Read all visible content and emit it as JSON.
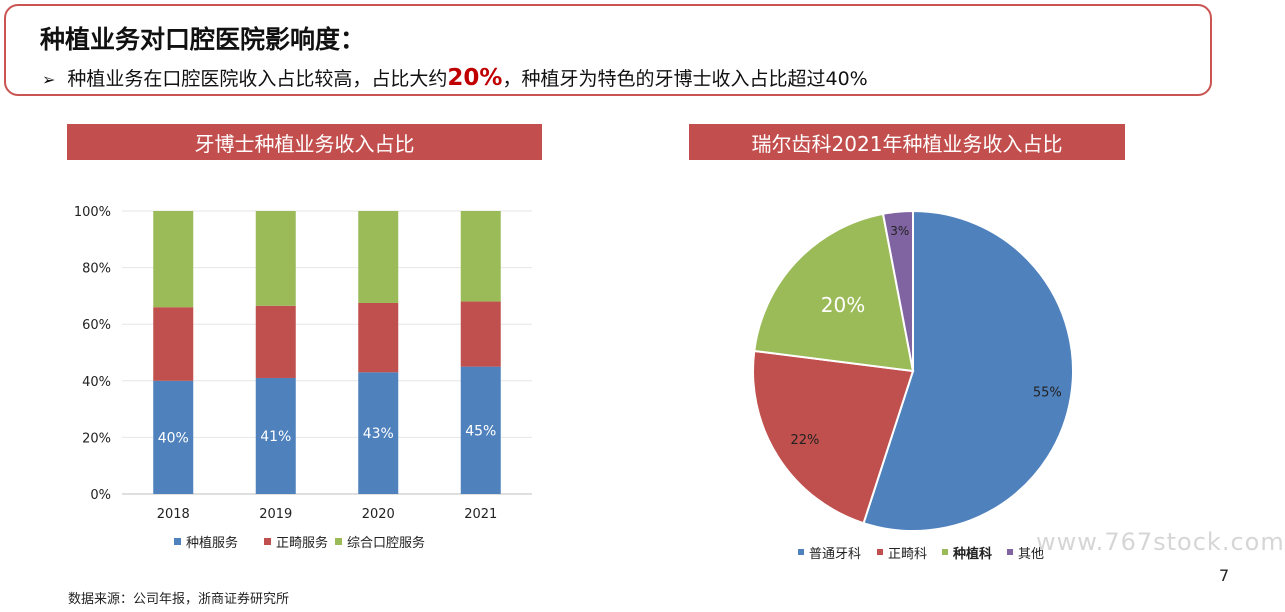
{
  "header": {
    "title": "种植业务对口腔医院影响度：",
    "bullet": {
      "marker": "➢",
      "text_before": "种植业务在口腔医院收入占比较高，占比大约",
      "highlight": "20%",
      "text_after": "，种植牙为特色的牙博士收入占比超过40%"
    }
  },
  "chart_data": [
    {
      "type": "bar",
      "stacked": true,
      "title": "牙博士种植业务收入占比",
      "categories": [
        "2018",
        "2019",
        "2020",
        "2021"
      ],
      "series": [
        {
          "name": "种植服务",
          "color": "#4f81bd",
          "values": [
            40,
            41,
            43,
            45
          ],
          "labels": [
            "40%",
            "41%",
            "43%",
            "45%"
          ]
        },
        {
          "name": "正畸服务",
          "color": "#c0504d",
          "values": [
            26,
            25.5,
            24.5,
            23
          ]
        },
        {
          "name": "综合口腔服务",
          "color": "#9bbb59",
          "values": [
            34,
            33.5,
            32.5,
            32
          ]
        }
      ],
      "ylim": [
        0,
        100
      ],
      "yticks": [
        "0%",
        "20%",
        "40%",
        "60%",
        "80%",
        "100%"
      ],
      "grid": true,
      "legend_position": "bottom"
    },
    {
      "type": "pie",
      "title": "瑞尔齿科2021年种植业务收入占比",
      "slices": [
        {
          "name": "普通牙科",
          "value": 55,
          "label": "55%",
          "color": "#4f81bd"
        },
        {
          "name": "正畸科",
          "value": 22,
          "label": "22%",
          "color": "#c0504d"
        },
        {
          "name": "种植科",
          "value": 20,
          "label": "20%",
          "color": "#9bbb59"
        },
        {
          "name": "其他",
          "value": 3,
          "label": "3%",
          "color": "#8064a2"
        }
      ],
      "legend_position": "bottom"
    }
  ],
  "footer": {
    "source": "数据来源：公司年报，浙商证券研究所",
    "page_number": "7",
    "watermark": "www.767stock.com"
  }
}
